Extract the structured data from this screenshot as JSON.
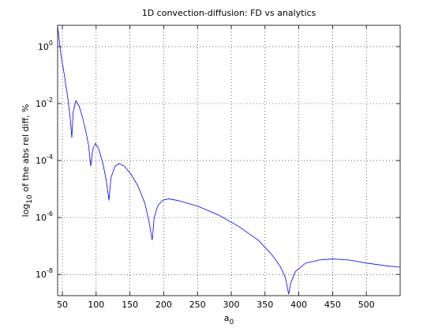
{
  "chart_data": {
    "type": "line",
    "title": "1D convection-diffusion: FD vs analytics",
    "xlabel": [
      "a",
      "0"
    ],
    "ylabel": [
      "log",
      "10",
      " of the abs rel diff, %"
    ],
    "xlim": [
      43,
      550
    ],
    "ylim": [
      1.8e-09,
      5.6
    ],
    "xticks": [
      50,
      100,
      150,
      200,
      250,
      300,
      350,
      400,
      450,
      500
    ],
    "yticks": [
      {
        "value": 1,
        "label": "10^0"
      },
      {
        "value": 0.01,
        "label": "10^-2"
      },
      {
        "value": 0.0001,
        "label": "10^-4"
      },
      {
        "value": 1e-06,
        "label": "10^-6"
      },
      {
        "value": 1e-08,
        "label": "10^-8"
      }
    ],
    "log_y": true,
    "grid": true,
    "series": [
      {
        "color": "#0000ff",
        "x": [
          43,
          48,
          53,
          58,
          62,
          64,
          66,
          70,
          75,
          80,
          85,
          89,
          92,
          95,
          99,
          104,
          110,
          115,
          119,
          122,
          128,
          134,
          142,
          152,
          162,
          172,
          178,
          183,
          186,
          191,
          198,
          207,
          220,
          250,
          280,
          310,
          340,
          360,
          372,
          380,
          385,
          388,
          395,
          410,
          430,
          450,
          475,
          500,
          530,
          550
        ],
        "values": [
          5.0,
          0.5,
          0.1,
          0.0158,
          0.0025,
          0.00063,
          0.005,
          0.0126,
          0.0079,
          0.0032,
          0.001,
          0.00032,
          6.3e-05,
          0.00025,
          0.0004,
          0.00025,
          7.9e-05,
          2e-05,
          4e-06,
          2.5e-05,
          6.3e-05,
          7.9e-05,
          6.3e-05,
          3.2e-05,
          1.26e-05,
          3.2e-06,
          7.9e-07,
          1.6e-07,
          1e-06,
          2.5e-06,
          4e-06,
          4.5e-06,
          4e-06,
          2.5e-06,
          1.26e-06,
          5e-07,
          1.6e-07,
          5e-08,
          2e-08,
          7.9e-09,
          2e-09,
          5e-09,
          1.26e-08,
          2.5e-08,
          3.2e-08,
          3.5e-08,
          3.2e-08,
          2.5e-08,
          2e-08,
          1.8e-08
        ]
      }
    ]
  }
}
